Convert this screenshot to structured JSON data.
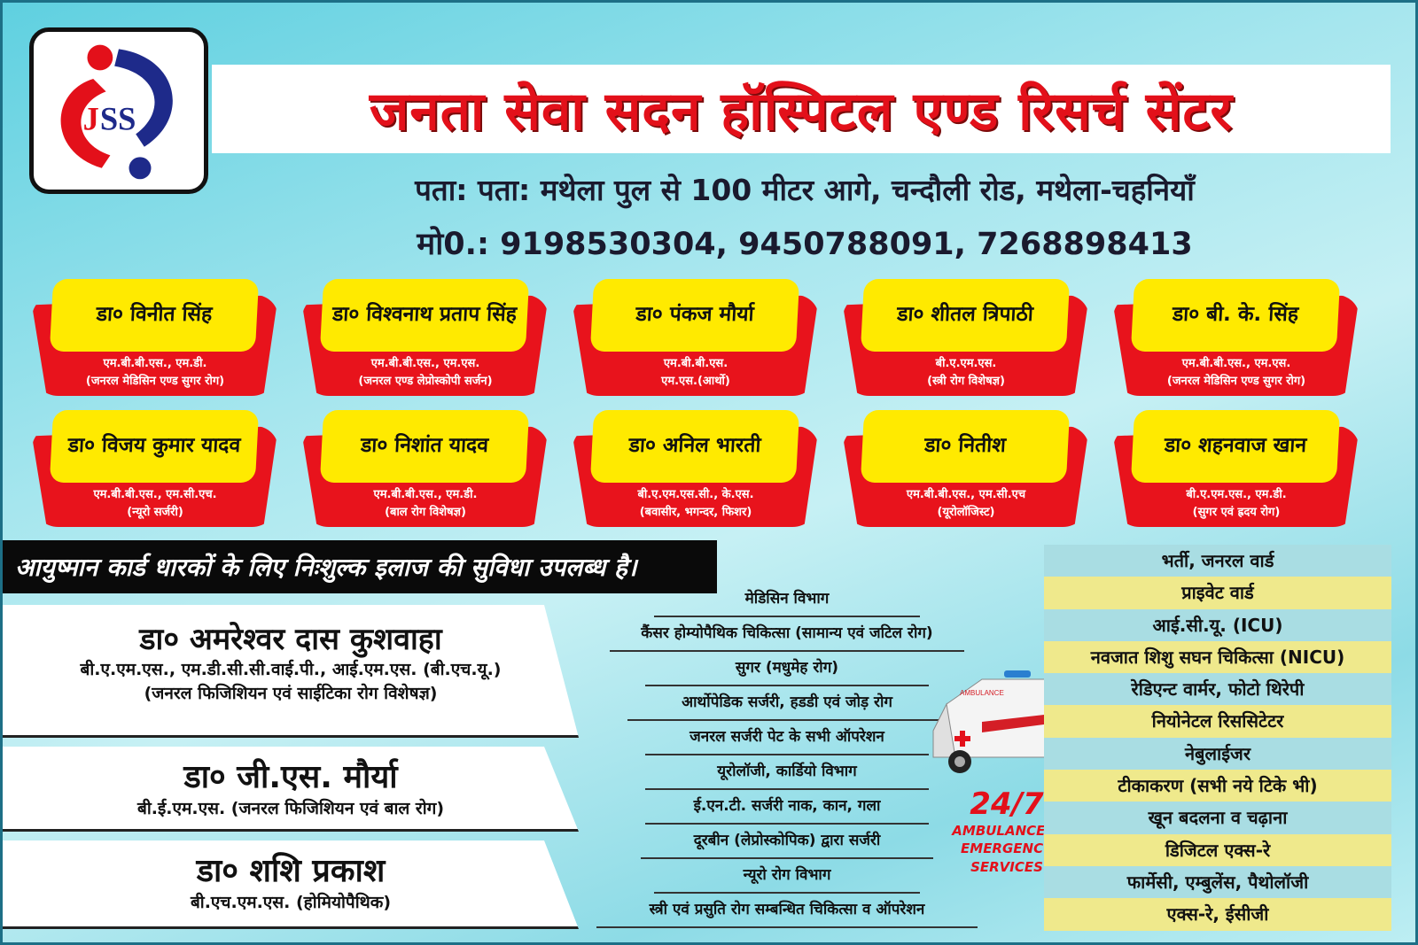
{
  "logo": {
    "text": "JSS",
    "colors": {
      "red": "#e3101a",
      "blue": "#1e2a8a"
    }
  },
  "header": {
    "title": "जनता सेवा सदन हॉस्पिटल एण्ड रिसर्च सेंटर",
    "address": "पता: पता: मथेला पुल से 100 मीटर आगे, चन्दौली रोड, मथेला-चहनियाँ",
    "phone": "मो0.: 9198530304, 9450788091, 7268898413"
  },
  "doctors": [
    {
      "name": "डा० विनीत सिंह",
      "qual1": "एम.बी.बी.एस., एम.डी.",
      "qual2": "(जनरल मेडिसिन एण्ड सुगर रोग)"
    },
    {
      "name": "डा० विश्वनाथ प्रताप सिंह",
      "qual1": "एम.बी.बी.एस., एम.एस.",
      "qual2": "(जनरल एण्ड लेप्रोस्कोपी सर्जन)"
    },
    {
      "name": "डा० पंकज मौर्या",
      "qual1": "एम.बी.बी.एस.",
      "qual2": "एम.एस.(आर्थो)"
    },
    {
      "name": "डा० शीतल त्रिपाठी",
      "qual1": "बी.ए.एम.एस.",
      "qual2": "(स्त्री रोग विशेषज्ञ)"
    },
    {
      "name": "डा० बी. के. सिंह",
      "qual1": "एम.बी.बी.एस., एम.एस.",
      "qual2": "(जनरल मेडिसिन एण्ड सुगर रोग)"
    },
    {
      "name": "डा० विजय कुमार यादव",
      "qual1": "एम.बी.बी.एस., एम.सी.एच.",
      "qual2": "(न्यूरो सर्जरी)"
    },
    {
      "name": "डा० निशांत यादव",
      "qual1": "एम.बी.बी.एस., एम.डी.",
      "qual2": "(बाल रोग विशेषज्ञ)"
    },
    {
      "name": "डा० अनिल भारती",
      "qual1": "बी.ए.एम.एस.सी., के.एस.",
      "qual2": "(बवासीर, भगन्दर, फिशर)"
    },
    {
      "name": "डा० नितीश",
      "qual1": "एम.बी.बी.एस., एम.सी.एच",
      "qual2": "(यूरोलॉजिस्ट)"
    },
    {
      "name": "डा० शहनवाज खान",
      "qual1": "बी.ए.एम.एस., एम.डी.",
      "qual2": "(सुगर एवं ह्रदय रोग)"
    }
  ],
  "banner": "आयुष्मान कार्ड धारकों के लिए निःशुल्क इलाज की सुविधा उपलब्ध है।",
  "resident_doctors": [
    {
      "name": "डा० अमरेश्वर दास कुशवाहा",
      "qual1": "बी.ए.एम.एस., एम.डी.सी.सी.वाई.पी., आई.एम.एस. (बी.एच.यू.)",
      "qual2": "(जनरल फिजिशियन एवं साईटिका रोग विशेषज्ञ)"
    },
    {
      "name": "डा० जी.एस. मौर्या",
      "qual1": "बी.ई.एम.एस. (जनरल फिजिशियन एवं बाल रोग)"
    },
    {
      "name": "डा० शशि प्रकाश",
      "qual1": "बी.एच.एम.एस. (होमियोपैथिक)"
    }
  ],
  "services": [
    "मेडिसिन विभाग",
    "कैंसर होम्योपैथिक चिकित्सा (सामान्य एवं जटिल रोग)",
    "सुगर (मधुमेह रोग)",
    "आर्थोपेडिक सर्जरी, हडडी एवं जोड़ रोग",
    "जनरल सर्जरी पेट के सभी ऑपरेशन",
    "यूरोलॉजी, कार्डियो विभाग",
    "ई.एन.टी. सर्जरी नाक, कान, गला",
    "दूरबीन (लेप्रोस्कोपिक) द्वारा सर्जरी",
    "न्यूरो रोग विभाग",
    "स्त्री एवं प्रसुति रोग सम्बन्धित चिकित्सा व ऑपरेशन"
  ],
  "facilities": [
    "भर्ती, जनरल वार्ड",
    "प्राइवेट वार्ड",
    "आई.सी.यू. (ICU)",
    "नवजात शिशु सघन चिकित्सा (NICU)",
    "रेडिएन्ट वार्मर, फोटो थिरेपी",
    "नियोनेटल रिससिटेटर",
    "नेबुलाईजर",
    "टीकाकरण (सभी नये टिके भी)",
    "खून बदलना व चढ़ाना",
    "डिजिटल एक्स-रे",
    "फार्मेसी, एम्बुलेंस, पैथोलॉजी",
    "एक्स-रे, ईसीजी"
  ],
  "emergency": {
    "badge": "24/7",
    "line1": "AMBULANCE &",
    "line2": "EMERGENCY",
    "line3": "SERVICES",
    "ambulance_label": "AMBULANCE"
  }
}
